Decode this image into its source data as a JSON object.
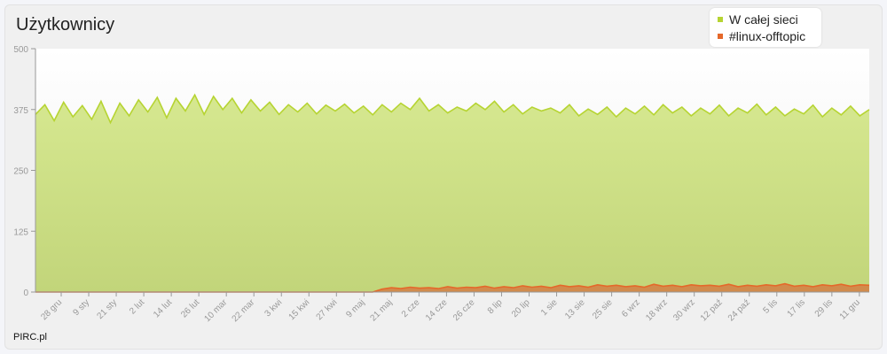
{
  "chart_data": {
    "type": "area",
    "title": "Użytkownicy",
    "ylim": [
      0,
      500
    ],
    "yticks": [
      "0",
      "125",
      "250",
      "375",
      "500"
    ],
    "xticks": [
      "28 gru",
      "9 sty",
      "21 sty",
      "2 lut",
      "14 lut",
      "26 lut",
      "10 mar",
      "22 mar",
      "3 kwi",
      "15 kwi",
      "27 kwi",
      "9 maj",
      "21 maj",
      "2 cze",
      "14 cze",
      "26 cze",
      "8 lip",
      "20 lip",
      "1 sie",
      "13 sie",
      "25 sie",
      "6 wrz",
      "18 wrz",
      "30 wrz",
      "12 paź",
      "24 paź",
      "5 lis",
      "17 lis",
      "29 lis",
      "11 gru"
    ],
    "grid": false,
    "legend_placement": "top-right",
    "series": [
      {
        "name": "W całej sieci",
        "color": "#b6d432",
        "values": [
          365,
          385,
          352,
          390,
          360,
          383,
          355,
          392,
          348,
          388,
          362,
          395,
          370,
          400,
          358,
          398,
          372,
          405,
          365,
          402,
          375,
          398,
          368,
          395,
          372,
          390,
          365,
          385,
          370,
          388,
          366,
          384,
          372,
          386,
          368,
          382,
          364,
          385,
          370,
          388,
          375,
          398,
          372,
          385,
          368,
          380,
          372,
          388,
          375,
          392,
          370,
          385,
          366,
          380,
          372,
          378,
          368,
          385,
          362,
          376,
          365,
          380,
          360,
          378,
          366,
          382,
          364,
          385,
          368,
          380,
          362,
          378,
          366,
          384,
          362,
          378,
          368,
          386,
          364,
          380,
          362,
          376,
          366,
          384,
          360,
          378,
          364,
          382,
          362,
          375
        ]
      },
      {
        "name": "#linux-offtopic",
        "color": "#e5682a",
        "values": [
          0,
          0,
          0,
          0,
          0,
          0,
          0,
          0,
          0,
          0,
          0,
          0,
          0,
          0,
          0,
          0,
          0,
          0,
          0,
          0,
          0,
          0,
          0,
          0,
          0,
          0,
          0,
          0,
          0,
          0,
          0,
          0,
          0,
          0,
          0,
          0,
          0,
          6,
          9,
          7,
          10,
          8,
          9,
          7,
          11,
          8,
          10,
          9,
          12,
          8,
          11,
          9,
          13,
          10,
          12,
          9,
          14,
          11,
          13,
          10,
          15,
          12,
          14,
          11,
          13,
          10,
          16,
          12,
          14,
          11,
          15,
          13,
          14,
          12,
          16,
          11,
          14,
          12,
          15,
          13,
          17,
          12,
          14,
          11,
          15,
          13,
          16,
          12,
          15,
          14
        ]
      }
    ]
  },
  "footer": {
    "credit": "PIRC.pl"
  }
}
